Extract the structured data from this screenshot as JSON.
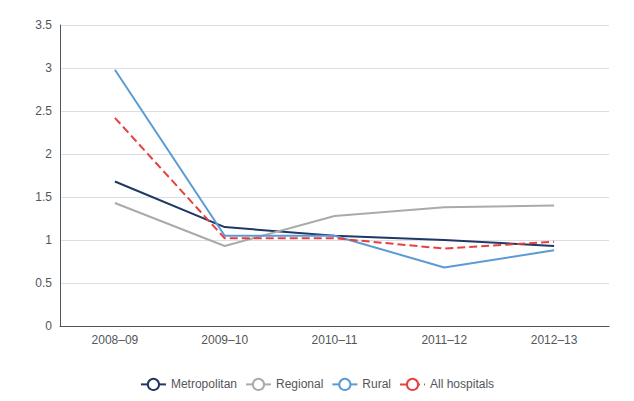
{
  "chart_data": {
    "type": "line",
    "categories": [
      "2008–09",
      "2009–10",
      "2010–11",
      "2011–12",
      "2012–13"
    ],
    "series": [
      {
        "name": "Metropolitan",
        "color": "#1f3864",
        "line_style": "solid",
        "values": [
          1.68,
          1.15,
          1.05,
          1.0,
          0.93
        ]
      },
      {
        "name": "Regional",
        "color": "#aaaaaa",
        "line_style": "solid",
        "values": [
          1.43,
          0.93,
          1.28,
          1.38,
          1.4
        ]
      },
      {
        "name": "Rural",
        "color": "#5b9bd5",
        "line_style": "solid",
        "values": [
          2.98,
          1.05,
          1.05,
          0.68,
          0.88
        ]
      },
      {
        "name": "All hospitals",
        "color": "#e84040",
        "line_style": "dashed",
        "values": [
          2.42,
          1.02,
          1.02,
          0.9,
          0.98
        ]
      }
    ],
    "ylim": [
      0,
      3.5
    ],
    "yticks": [
      0,
      0.5,
      1,
      1.5,
      2,
      2.5,
      3,
      3.5
    ],
    "grid": true,
    "legend": "bottom"
  }
}
